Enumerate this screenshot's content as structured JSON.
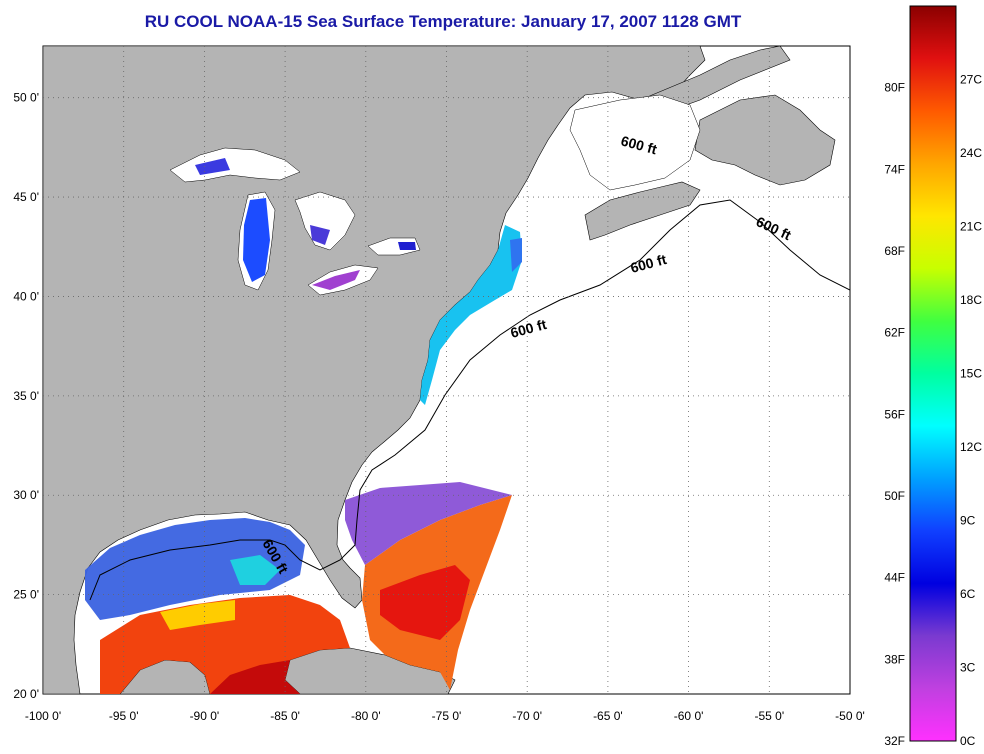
{
  "title": "RU COOL  NOAA-15  Sea Surface Temperature:  January 17, 2007 1128 GMT",
  "map": {
    "lon_labels": [
      "-100 0'",
      "-95 0'",
      "-90 0'",
      "-85 0'",
      "-80 0'",
      "-75 0'",
      "-70 0'",
      "-65 0'",
      "-60 0'",
      "-55 0'",
      "-50 0'"
    ],
    "lat_labels": [
      "50 0'",
      "45 0'",
      "40 0'",
      "35 0'",
      "30 0'",
      "25 0'",
      "20 0'"
    ],
    "shelf_label": "600 ft",
    "colors": {
      "land": "#b4b4b4",
      "no_data": "#ffffff",
      "grid": "#555555"
    }
  },
  "colorbar": {
    "fahrenheit_labels": [
      "80F",
      "74F",
      "68F",
      "62F",
      "56F",
      "50F",
      "44F",
      "38F",
      "32F"
    ],
    "celsius_labels": [
      "27C",
      "24C",
      "21C",
      "18C",
      "15C",
      "12C",
      "9C",
      "6C",
      "3C",
      "0C"
    ],
    "gradient_colors": [
      "#8b0000",
      "#e01010",
      "#ff5a00",
      "#ffa500",
      "#ffe600",
      "#c8ff00",
      "#40ff40",
      "#00ffa0",
      "#00ffff",
      "#00a0ff",
      "#1040ff",
      "#0000e0",
      "#7a3ad0",
      "#c040e0",
      "#ff30ff"
    ]
  }
}
